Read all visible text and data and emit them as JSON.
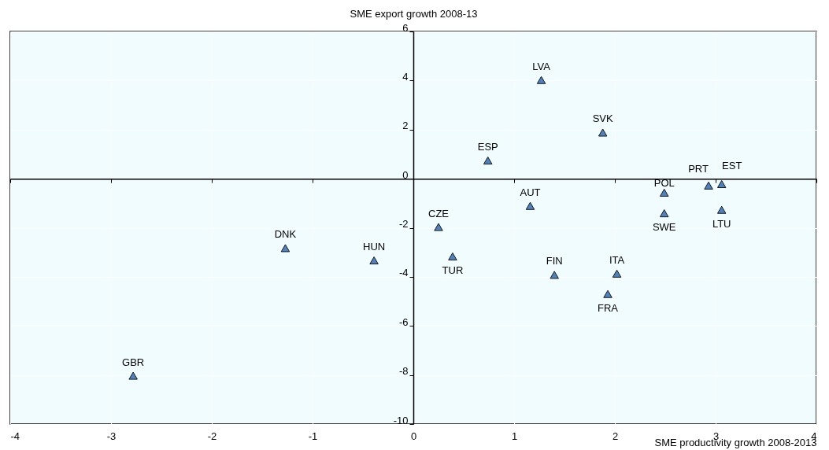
{
  "chart_data": {
    "type": "scatter",
    "xlabel": "SME productivity growth 2008-2013",
    "ylabel": "SME export growth 2008-13",
    "xlim": [
      -4,
      4
    ],
    "xticks": [
      -4,
      -3,
      -2,
      -1,
      0,
      1,
      2,
      3,
      4
    ],
    "ylim": [
      -10,
      6
    ],
    "yticks": [
      -10,
      -8,
      -6,
      -4,
      -2,
      0,
      2,
      4,
      6
    ],
    "grid": true,
    "marker": "triangle",
    "legend": false,
    "series": [
      {
        "name": "GBR",
        "color": "#4f81bd",
        "x": [
          -2.78
        ],
        "values": [
          -8.03
        ]
      },
      {
        "name": "DNK",
        "color": "#4f81bd",
        "x": [
          -1.27
        ],
        "values": [
          -2.83
        ]
      },
      {
        "name": "HUN",
        "color": "#4f81bd",
        "x": [
          -0.39
        ],
        "values": [
          -3.33
        ]
      },
      {
        "name": "CZE",
        "color": "#4f81bd",
        "x": [
          0.25
        ],
        "values": [
          -1.97
        ]
      },
      {
        "name": "TUR",
        "color": "#4f81bd",
        "x": [
          0.39
        ],
        "values": [
          -3.17
        ]
      },
      {
        "name": "ESP",
        "color": "#4f81bd",
        "x": [
          0.74
        ],
        "values": [
          0.74
        ]
      },
      {
        "name": "AUT",
        "color": "#4f81bd",
        "x": [
          1.16
        ],
        "values": [
          -1.11
        ]
      },
      {
        "name": "LVA",
        "color": "#4f81bd",
        "x": [
          1.27
        ],
        "values": [
          4.02
        ]
      },
      {
        "name": "FIN",
        "color": "#4f81bd",
        "x": [
          1.4
        ],
        "values": [
          -3.92
        ]
      },
      {
        "name": "SVK",
        "color": "#4f81bd",
        "x": [
          1.88
        ],
        "values": [
          1.88
        ]
      },
      {
        "name": "FRA",
        "color": "#4f81bd",
        "x": [
          1.93
        ],
        "values": [
          -4.7
        ]
      },
      {
        "name": "ITA",
        "color": "#4f81bd",
        "x": [
          2.02
        ],
        "values": [
          -3.87
        ]
      },
      {
        "name": "POL",
        "color": "#4f81bd",
        "x": [
          2.49
        ],
        "values": [
          -0.57
        ]
      },
      {
        "name": "SWE",
        "color": "#4f81bd",
        "x": [
          2.49
        ],
        "values": [
          -1.41
        ]
      },
      {
        "name": "PRT",
        "color": "#4f81bd",
        "x": [
          2.93
        ],
        "values": [
          -0.28
        ]
      },
      {
        "name": "EST",
        "color": "#4f81bd",
        "x": [
          3.06
        ],
        "values": [
          -0.22
        ]
      },
      {
        "name": "LTU",
        "color": "#4f81bd",
        "x": [
          3.06
        ],
        "values": [
          -1.27
        ]
      }
    ]
  }
}
